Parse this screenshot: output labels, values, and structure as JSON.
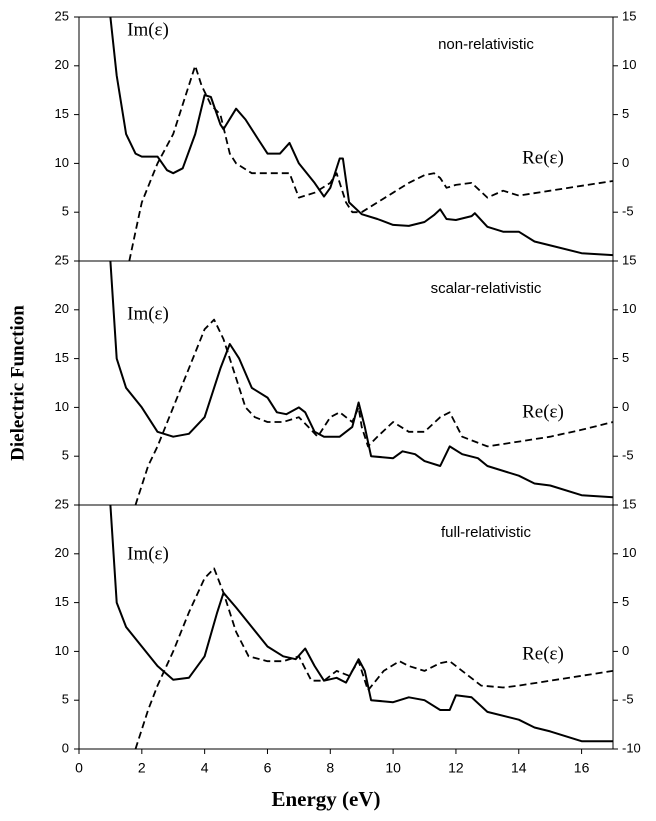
{
  "chart_data": [
    {
      "type": "line",
      "title": "non-relativistic",
      "xlim": [
        0,
        17
      ],
      "ylim": [
        0,
        25
      ],
      "yticks": [
        5,
        10,
        15,
        20,
        25
      ],
      "y2lim": [
        -10,
        15
      ],
      "y2ticks": [
        -5,
        0,
        5,
        10,
        15
      ],
      "series": [
        {
          "name": "Im(ε)",
          "color": "#000000",
          "linestyle": "solid",
          "x": [
            1.0,
            1.2,
            1.5,
            1.8,
            2.0,
            2.5,
            2.8,
            3.0,
            3.3,
            3.7,
            4.0,
            4.2,
            4.5,
            4.6,
            5.0,
            5.3,
            5.7,
            6.0,
            6.4,
            6.7,
            7.0,
            7.5,
            7.8,
            8.0,
            8.3,
            8.4,
            8.6,
            9.0,
            9.5,
            10.0,
            10.5,
            11.0,
            11.3,
            11.5,
            11.7,
            12.0,
            12.5,
            12.6,
            13.0,
            13.5,
            14.0,
            14.5,
            15.0,
            16.0,
            17.0
          ],
          "values": [
            25,
            19,
            13,
            11,
            10.7,
            10.7,
            9.3,
            9,
            9.5,
            13,
            17,
            16.8,
            14,
            13.5,
            15.6,
            14.5,
            12.5,
            11,
            11,
            12.1,
            10,
            8,
            6.6,
            7.5,
            10.5,
            10.5,
            6,
            4.8,
            4.3,
            3.7,
            3.6,
            4,
            4.7,
            5.3,
            4.3,
            4.2,
            4.6,
            4.9,
            3.5,
            3,
            3,
            2,
            1.6,
            0.8,
            0.6
          ]
        },
        {
          "name": "Re(ε)",
          "color": "#000000",
          "linestyle": "dashed",
          "axis": "y2",
          "x": [
            1.6,
            1.8,
            2.0,
            2.5,
            3.0,
            3.5,
            3.7,
            3.9,
            4.2,
            4.5,
            4.8,
            5.0,
            5.5,
            6.0,
            6.5,
            6.7,
            7.0,
            7.5,
            8.0,
            8.2,
            8.5,
            8.7,
            9.0,
            9.5,
            10.0,
            10.5,
            11.0,
            11.3,
            11.5,
            11.7,
            12.0,
            12.5,
            13.0,
            13.5,
            14.0,
            15.0,
            16.0,
            17.0
          ],
          "values": [
            -10,
            -7,
            -4,
            0,
            3,
            8,
            10,
            8,
            6,
            5,
            1,
            0,
            -1,
            -1,
            -1,
            -1,
            -3.5,
            -3,
            -2,
            -1,
            -4,
            -5,
            -5,
            -4,
            -3,
            -2,
            -1.2,
            -1,
            -1.5,
            -2.5,
            -2.2,
            -2,
            -3.5,
            -2.8,
            -3.3,
            -2.8,
            -2.3,
            -1.8
          ]
        }
      ]
    },
    {
      "type": "line",
      "title": "scalar-relativistic",
      "ylabel": "Dielectric Function",
      "xlim": [
        0,
        17
      ],
      "ylim": [
        0,
        25
      ],
      "yticks": [
        5,
        10,
        15,
        20,
        25
      ],
      "y2lim": [
        -10,
        15
      ],
      "y2ticks": [
        -5,
        0,
        5,
        10,
        15
      ],
      "series": [
        {
          "name": "Im(ε)",
          "color": "#000000",
          "linestyle": "solid",
          "x": [
            1.0,
            1.2,
            1.5,
            2.0,
            2.5,
            3.0,
            3.5,
            4.0,
            4.5,
            4.8,
            5.1,
            5.5,
            6.0,
            6.3,
            6.6,
            7.0,
            7.2,
            7.5,
            7.8,
            8.3,
            8.7,
            8.9,
            9.1,
            9.3,
            10.0,
            10.3,
            10.7,
            11.0,
            11.5,
            11.8,
            12.2,
            12.7,
            13.0,
            14.0,
            14.5,
            15.0,
            16.0,
            17.0
          ],
          "values": [
            25,
            15,
            12,
            10,
            7.5,
            7,
            7.3,
            9,
            14,
            16.5,
            15,
            12,
            11,
            9.5,
            9.3,
            10,
            9.5,
            7.5,
            7,
            7,
            8,
            10.5,
            8,
            5,
            4.8,
            5.5,
            5.2,
            4.5,
            4,
            6,
            5.2,
            4.8,
            4,
            3,
            2.2,
            2,
            1,
            0.8
          ]
        },
        {
          "name": "Re(ε)",
          "color": "#000000",
          "linestyle": "dashed",
          "axis": "y2",
          "x": [
            1.8,
            2.2,
            2.5,
            3.0,
            3.5,
            4.0,
            4.3,
            4.6,
            5.0,
            5.3,
            5.6,
            6.0,
            6.5,
            7.0,
            7.3,
            7.6,
            8.0,
            8.3,
            8.7,
            8.9,
            9.0,
            9.2,
            9.5,
            10.0,
            10.5,
            11.0,
            11.5,
            11.8,
            12.2,
            13.0,
            14.0,
            15.0,
            16.0,
            17.0
          ],
          "values": [
            -10,
            -6,
            -4,
            0,
            4,
            8,
            9,
            7,
            3,
            0,
            -1,
            -1.5,
            -1.5,
            -1,
            -2,
            -3,
            -1,
            -0.5,
            -1.5,
            0,
            -2,
            -4,
            -3,
            -1.5,
            -2.5,
            -2.5,
            -1,
            -0.5,
            -3,
            -4,
            -3.5,
            -3,
            -2.3,
            -1.5
          ]
        }
      ]
    },
    {
      "type": "line",
      "title": "full-relativistic",
      "xlabel": "Energy (eV)",
      "xlim": [
        0,
        17
      ],
      "xticks": [
        0,
        2,
        4,
        6,
        8,
        10,
        12,
        14,
        16
      ],
      "ylim": [
        0,
        25
      ],
      "yticks": [
        0,
        5,
        10,
        15,
        20,
        25
      ],
      "y2lim": [
        -10,
        15
      ],
      "y2ticks": [
        -10,
        -5,
        0,
        5,
        10,
        15
      ],
      "series": [
        {
          "name": "Im(ε)",
          "color": "#000000",
          "linestyle": "solid",
          "x": [
            1.0,
            1.2,
            1.5,
            2.0,
            2.5,
            3.0,
            3.5,
            4.0,
            4.4,
            4.6,
            5.0,
            5.5,
            6.0,
            6.5,
            6.9,
            7.2,
            7.5,
            7.8,
            8.2,
            8.5,
            8.9,
            9.1,
            9.3,
            10.0,
            10.5,
            11.0,
            11.5,
            11.8,
            12.0,
            12.5,
            13.0,
            14.0,
            14.5,
            15.0,
            16.0,
            17.0
          ],
          "values": [
            25,
            15,
            12.5,
            10.5,
            8.5,
            7.1,
            7.3,
            9.5,
            14,
            16,
            14.5,
            12.5,
            10.5,
            9.5,
            9.2,
            10.3,
            8.5,
            7,
            7.3,
            6.8,
            9.2,
            8,
            5,
            4.8,
            5.3,
            5,
            4,
            4,
            5.5,
            5.3,
            3.8,
            3,
            2.2,
            1.8,
            0.8,
            0.8
          ]
        },
        {
          "name": "Re(ε)",
          "color": "#000000",
          "linestyle": "dashed",
          "axis": "y2",
          "x": [
            1.8,
            2.2,
            2.5,
            3.0,
            3.5,
            4.0,
            4.3,
            4.6,
            5.0,
            5.4,
            6.0,
            6.5,
            7.0,
            7.4,
            7.8,
            8.2,
            8.6,
            8.9,
            9.2,
            9.7,
            10.2,
            10.5,
            11.0,
            11.5,
            11.8,
            12.2,
            12.8,
            13.5,
            14.0,
            15.0,
            16.0,
            17.0
          ],
          "values": [
            -10,
            -6,
            -3.5,
            0,
            4,
            7.5,
            8.5,
            6,
            2,
            -0.5,
            -1,
            -1,
            -0.5,
            -3,
            -3,
            -2,
            -2.5,
            -1,
            -4,
            -2,
            -1,
            -1.5,
            -2,
            -1.2,
            -1,
            -2,
            -3.5,
            -3.7,
            -3.5,
            -3,
            -2.5,
            -2
          ]
        }
      ]
    }
  ]
}
